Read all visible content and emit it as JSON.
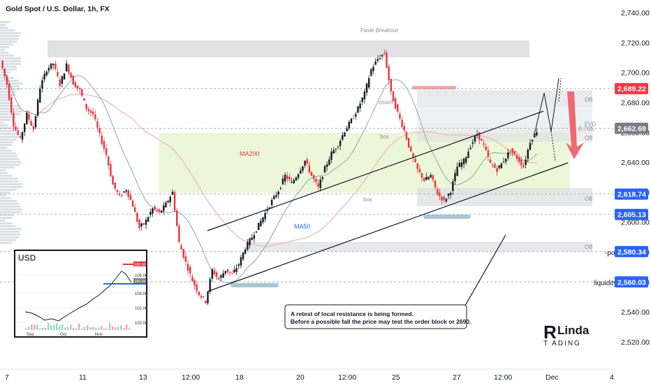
{
  "header": {
    "symbol_title": "Gold Spot / U.S. Dollar, 1h, FX"
  },
  "colors": {
    "up_candle": "#131722",
    "down_candle": "#e8323c",
    "ma200": "#f4b2b2",
    "ma50": "#8fa6ad",
    "zone_green": "#eaf5d5",
    "zone_grey": "#d9dcdf",
    "zone_blue": "#d8e6ee",
    "red_arrow": "#ee5965",
    "price_tag_red": "#f23645",
    "price_tag_blue": "#2962ff",
    "price_tag_grey": "#787b86"
  },
  "chart_data": {
    "type": "candlestick",
    "title": "Gold Spot / U.S. Dollar, 1h, FX",
    "y_ticks": [
      2520,
      2540,
      2560,
      2580,
      2600,
      2620,
      2640,
      2660,
      2680,
      2700,
      2720,
      2740
    ],
    "y_tick_labels": [
      "2,520.00",
      "2,540.00",
      "2,560.00",
      "2,580.00",
      "2,600.00",
      "2,620.00",
      "2,640.00",
      "2,660.00",
      "2,680.00",
      "2,700.00",
      "2,720.00",
      "2,740.00"
    ],
    "ylim": [
      2510,
      2750
    ],
    "x_labels": [
      "7",
      "11",
      "13",
      "12:00",
      "18",
      "20",
      "12:00",
      "25",
      "27",
      "12:00",
      "Dec",
      "4"
    ],
    "price_path": [
      [
        0,
        2708
      ],
      [
        1,
        2692
      ],
      [
        2,
        2665
      ],
      [
        3,
        2655
      ],
      [
        4,
        2672
      ],
      [
        5,
        2662
      ],
      [
        6,
        2690
      ],
      [
        7,
        2702
      ],
      [
        8,
        2706
      ],
      [
        9,
        2692
      ],
      [
        10,
        2705
      ],
      [
        11,
        2693
      ],
      [
        12,
        2688
      ],
      [
        13,
        2676
      ],
      [
        14,
        2672
      ],
      [
        15,
        2658
      ],
      [
        16,
        2645
      ],
      [
        17,
        2625
      ],
      [
        18,
        2617
      ],
      [
        19,
        2622
      ],
      [
        20,
        2611
      ],
      [
        21,
        2596
      ],
      [
        22,
        2601
      ],
      [
        23,
        2609
      ],
      [
        24,
        2606
      ],
      [
        25,
        2612
      ],
      [
        26,
        2620
      ],
      [
        27,
        2586
      ],
      [
        28,
        2573
      ],
      [
        29,
        2561
      ],
      [
        30,
        2552
      ],
      [
        31,
        2547
      ],
      [
        32,
        2568
      ],
      [
        33,
        2562
      ],
      [
        34,
        2568
      ],
      [
        35,
        2565
      ],
      [
        36,
        2572
      ],
      [
        37,
        2583
      ],
      [
        38,
        2590
      ],
      [
        39,
        2598
      ],
      [
        40,
        2606
      ],
      [
        41,
        2614
      ],
      [
        42,
        2621
      ],
      [
        43,
        2631
      ],
      [
        44,
        2626
      ],
      [
        45,
        2633
      ],
      [
        46,
        2641
      ],
      [
        47,
        2631
      ],
      [
        48,
        2623
      ],
      [
        49,
        2636
      ],
      [
        50,
        2646
      ],
      [
        51,
        2652
      ],
      [
        52,
        2661
      ],
      [
        53,
        2668
      ],
      [
        54,
        2676
      ],
      [
        55,
        2686
      ],
      [
        56,
        2702
      ],
      [
        57,
        2709
      ],
      [
        58,
        2713
      ],
      [
        59,
        2686
      ],
      [
        60,
        2673
      ],
      [
        61,
        2661
      ],
      [
        62,
        2646
      ],
      [
        63,
        2635
      ],
      [
        64,
        2628
      ],
      [
        65,
        2631
      ],
      [
        66,
        2619
      ],
      [
        67,
        2614
      ],
      [
        68,
        2621
      ],
      [
        69,
        2637
      ],
      [
        70,
        2641
      ],
      [
        71,
        2651
      ],
      [
        72,
        2659
      ],
      [
        73,
        2651
      ],
      [
        74,
        2639
      ],
      [
        75,
        2635
      ],
      [
        76,
        2641
      ],
      [
        77,
        2648
      ],
      [
        78,
        2643
      ],
      [
        79,
        2637
      ],
      [
        80,
        2654
      ],
      [
        81,
        2661
      ]
    ],
    "ma200_label": "MA200",
    "ma50_label": "MA50",
    "levels": [
      {
        "value": 2689.22,
        "label": "2,689.22",
        "tag": "red"
      },
      {
        "value": 2662.69,
        "label": "2,662.69",
        "tag": "grey"
      },
      {
        "value": 2618.74,
        "label": "2,618.74",
        "tag": "blue"
      },
      {
        "value": 2605.13,
        "label": "2,605.13",
        "tag": "blue"
      },
      {
        "value": 2580.34,
        "label": "2,580.34",
        "tag": "blue",
        "note": "-poi"
      },
      {
        "value": 2560.03,
        "label": "2,560.03",
        "tag": "blue",
        "note": "liquidity"
      }
    ],
    "annotations": {
      "false_breakout": "Fasle Breakout",
      "fib": "0.705",
      "choch": "choch",
      "bos_1": "bos",
      "bos_2": "bos",
      "ob_1": "OB",
      "ob_2": "OB",
      "ob_3": "OB",
      "ob_4": "OB",
      "fvg": "FVG"
    }
  },
  "callout": {
    "line1": "A retest of local resistance is being formed.",
    "line2": "Before a possible fall the price may test the order block or 2690."
  },
  "inset": {
    "title": "USD",
    "y_labels": [
      "106.00",
      "104.00",
      "102.00",
      "100.00"
    ],
    "x_labels": [
      "Sep",
      "Oct",
      "Nov"
    ],
    "tags": [
      "106.50",
      "105.60"
    ]
  },
  "logo": {
    "text_top": "Linda",
    "text_bottom": "T  ADING",
    "mark": "R"
  }
}
